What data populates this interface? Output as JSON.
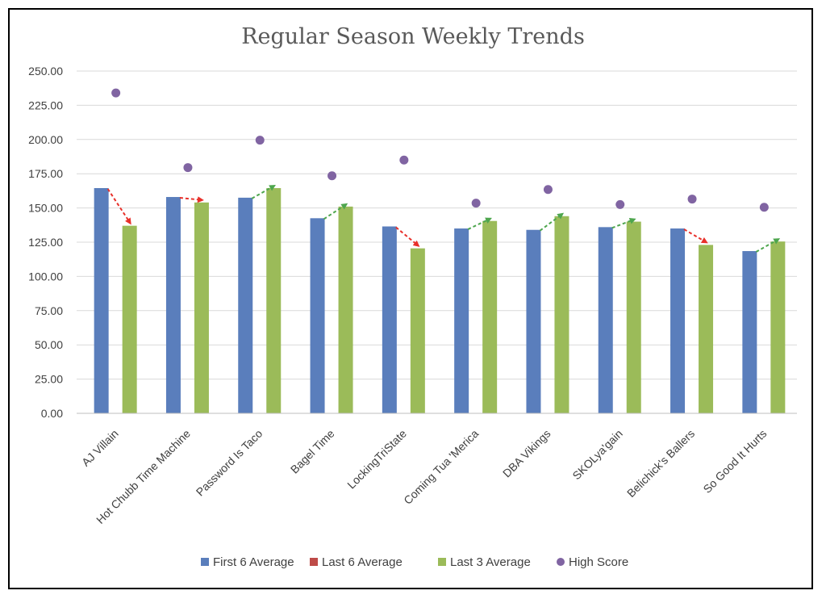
{
  "chart_data": {
    "type": "bar",
    "title": "Regular Season Weekly Trends",
    "xlabel": "",
    "ylabel": "",
    "ylim": [
      0,
      250
    ],
    "yticks": [
      "0.00",
      "25.00",
      "50.00",
      "75.00",
      "100.00",
      "125.00",
      "150.00",
      "175.00",
      "200.00",
      "225.00",
      "250.00"
    ],
    "grid": true,
    "legend_position": "bottom",
    "categories": [
      "AJ Villain",
      "Hot Chubb Time Machine",
      "Password Is Taco",
      "Bagel Time",
      "LockingTriState",
      "Coming Tua 'Merica",
      "DBA Vikings",
      "SKOLya'gain",
      "Belichick's Ballers",
      "So Good It Hurts"
    ],
    "series": [
      {
        "name": "First 6 Average",
        "kind": "bar",
        "color": "#5a7ebc",
        "values": [
          164.5,
          158.0,
          157.5,
          142.5,
          136.5,
          135.0,
          134.0,
          136.0,
          135.0,
          118.5
        ]
      },
      {
        "name": "Last 6 Average",
        "kind": "bar",
        "color": "#be4b48",
        "values": [
          null,
          null,
          null,
          null,
          null,
          null,
          null,
          null,
          null,
          null
        ]
      },
      {
        "name": "Last 3 Average",
        "kind": "bar",
        "color": "#9bbb59",
        "values": [
          137.0,
          154.0,
          164.5,
          151.0,
          120.5,
          140.5,
          144.0,
          140.0,
          123.0,
          125.5
        ]
      },
      {
        "name": "High Score",
        "kind": "scatter",
        "color": "#8064a2",
        "values": [
          234.0,
          179.5,
          199.5,
          173.5,
          185.0,
          153.5,
          163.5,
          152.5,
          156.5,
          150.5
        ]
      }
    ],
    "trend_arrows": {
      "from_series": "First 6 Average",
      "to_series": "Last 3 Average",
      "up_color": "#4ea64e",
      "down_color": "#e8302a"
    }
  }
}
